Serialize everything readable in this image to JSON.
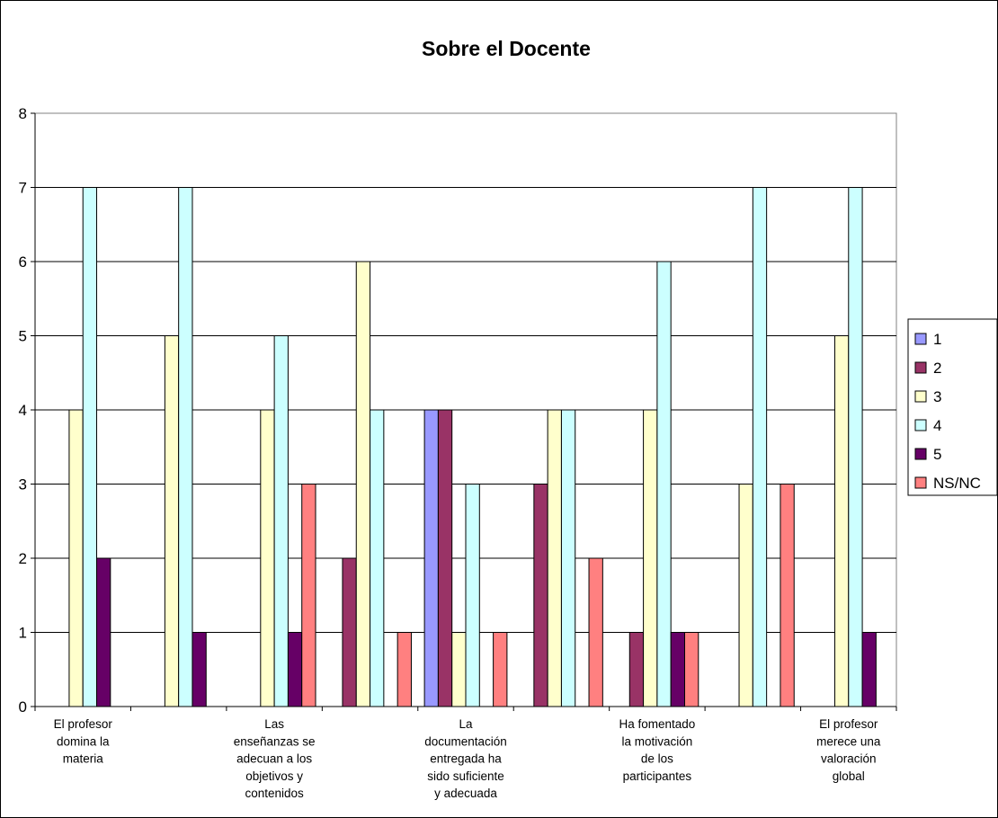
{
  "chart_data": {
    "type": "bar",
    "title": "Sobre el Docente",
    "xlabel": "",
    "ylabel": "",
    "ylim": [
      0,
      8
    ],
    "yticks": [
      0,
      1,
      2,
      3,
      4,
      5,
      6,
      7,
      8
    ],
    "grid": true,
    "legend_position": "right",
    "categories": [
      "El profesor domina la materia",
      "",
      "Las enseñanzas se adecuan a los objetivos y contenidos",
      "",
      "La documentación entregada ha sido suficiente y adecuada",
      "",
      "Ha fomentado la motivación de los participantes",
      "",
      "El profesor merece una valoración global"
    ],
    "category_label_lines": [
      [
        "El profesor",
        "domina la",
        "materia"
      ],
      [],
      [
        "Las",
        "enseñanzas se",
        "adecuan a los",
        "objetivos y",
        "contenidos"
      ],
      [],
      [
        "La",
        "documentación",
        "entregada ha",
        "sido suficiente",
        "y adecuada"
      ],
      [],
      [
        "Ha fomentado",
        "la motivación",
        "de los",
        "participantes"
      ],
      [],
      [
        "El profesor",
        "merece una",
        "valoración",
        "global"
      ]
    ],
    "series": [
      {
        "name": "1",
        "color": "#9999ff",
        "values": [
          0,
          0,
          0,
          0,
          4,
          0,
          0,
          0,
          0
        ]
      },
      {
        "name": "2",
        "color": "#993366",
        "values": [
          0,
          0,
          0,
          2,
          4,
          3,
          1,
          0,
          0
        ]
      },
      {
        "name": "3",
        "color": "#ffffcc",
        "values": [
          4,
          5,
          4,
          6,
          1,
          4,
          4,
          3,
          5
        ]
      },
      {
        "name": "4",
        "color": "#ccffff",
        "values": [
          7,
          7,
          5,
          4,
          3,
          4,
          6,
          7,
          7
        ]
      },
      {
        "name": "5",
        "color": "#660066",
        "values": [
          2,
          1,
          1,
          0,
          0,
          0,
          1,
          0,
          1
        ]
      },
      {
        "name": "NS/NC",
        "color": "#ff8080",
        "values": [
          0,
          0,
          3,
          1,
          1,
          2,
          1,
          3,
          0
        ]
      }
    ]
  }
}
